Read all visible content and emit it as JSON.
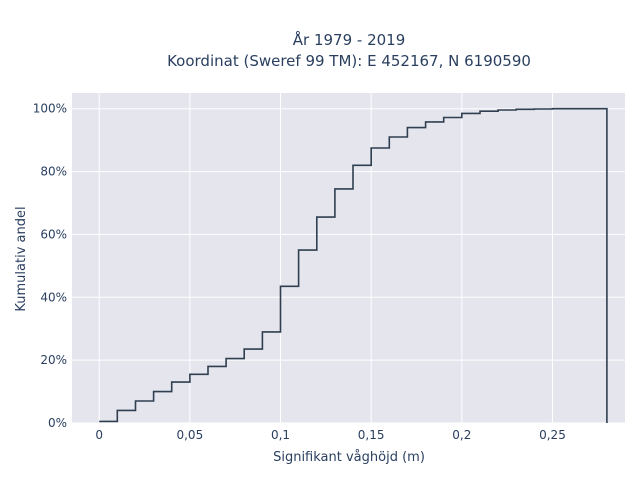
{
  "chart_data": {
    "type": "line",
    "line_shape": "step",
    "title_line1": "År 1979 - 2019",
    "title_line2": "Koordinat (Sweref 99 TM): E 452167, N 6190590",
    "xlabel": "Signifikant våghöjd (m)",
    "ylabel": "Kumulativ andel",
    "xlim": [
      -0.015,
      0.29
    ],
    "ylim": [
      0,
      1.05
    ],
    "x_ticks": [
      0,
      0.05,
      0.1,
      0.15,
      0.2,
      0.25
    ],
    "x_tick_labels": [
      "0",
      "0,05",
      "0,1",
      "0,15",
      "0,2",
      "0,25"
    ],
    "y_ticks": [
      0,
      0.2,
      0.4,
      0.6,
      0.8,
      1.0
    ],
    "y_tick_labels": [
      "0%",
      "20%",
      "40%",
      "60%",
      "80%",
      "100%"
    ],
    "grid": true,
    "plot_background": "#e5e5ee",
    "line_color": "#2f3f50",
    "x": [
      0,
      0.01,
      0.02,
      0.03,
      0.04,
      0.05,
      0.06,
      0.07,
      0.08,
      0.09,
      0.1,
      0.11,
      0.12,
      0.13,
      0.14,
      0.15,
      0.16,
      0.17,
      0.18,
      0.19,
      0.2,
      0.21,
      0.22,
      0.23,
      0.24,
      0.25,
      0.26,
      0.27,
      0.28,
      0.28
    ],
    "y": [
      0.005,
      0.04,
      0.07,
      0.1,
      0.13,
      0.155,
      0.18,
      0.205,
      0.235,
      0.29,
      0.435,
      0.55,
      0.655,
      0.745,
      0.82,
      0.875,
      0.91,
      0.94,
      0.958,
      0.972,
      0.985,
      0.992,
      0.996,
      0.998,
      0.999,
      1.0,
      1.0,
      1.0,
      1.0,
      0.0
    ]
  }
}
